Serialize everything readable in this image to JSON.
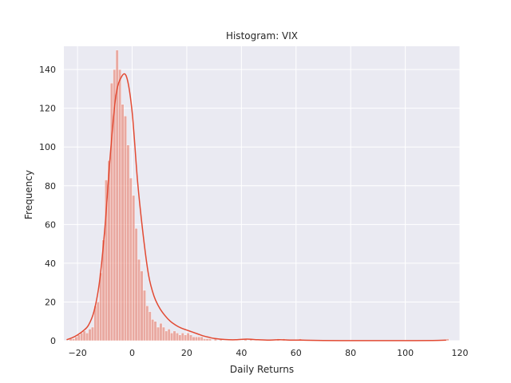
{
  "chart_data": {
    "type": "bar",
    "title": "Histogram: VIX",
    "xlabel": "Daily Returns",
    "ylabel": "Frequency",
    "xlim": [
      -25,
      120
    ],
    "ylim": [
      0,
      152
    ],
    "xticks": [
      -20,
      0,
      20,
      40,
      60,
      80,
      100,
      120
    ],
    "yticks": [
      0,
      20,
      40,
      60,
      80,
      100,
      120,
      140
    ],
    "grid": true,
    "background": "#eaeaf2",
    "bar_color": "#e8735f",
    "kde_color": "#e24a33",
    "bin_width": 1.0,
    "bins": [
      {
        "x": -23,
        "count": 1
      },
      {
        "x": -22,
        "count": 1
      },
      {
        "x": -21,
        "count": 2
      },
      {
        "x": -20,
        "count": 3
      },
      {
        "x": -19,
        "count": 4
      },
      {
        "x": -18,
        "count": 5
      },
      {
        "x": -17,
        "count": 4
      },
      {
        "x": -16,
        "count": 6
      },
      {
        "x": -15,
        "count": 7
      },
      {
        "x": -14,
        "count": 18
      },
      {
        "x": -13,
        "count": 20
      },
      {
        "x": -12,
        "count": 35
      },
      {
        "x": -11,
        "count": 52
      },
      {
        "x": -10,
        "count": 83
      },
      {
        "x": -9,
        "count": 93
      },
      {
        "x": -8,
        "count": 133
      },
      {
        "x": -7,
        "count": 140
      },
      {
        "x": -6,
        "count": 150
      },
      {
        "x": -5,
        "count": 140
      },
      {
        "x": -4,
        "count": 122
      },
      {
        "x": -3,
        "count": 116
      },
      {
        "x": -2,
        "count": 101
      },
      {
        "x": -1,
        "count": 84
      },
      {
        "x": 0,
        "count": 75
      },
      {
        "x": 1,
        "count": 58
      },
      {
        "x": 2,
        "count": 42
      },
      {
        "x": 3,
        "count": 36
      },
      {
        "x": 4,
        "count": 26
      },
      {
        "x": 5,
        "count": 18
      },
      {
        "x": 6,
        "count": 15
      },
      {
        "x": 7,
        "count": 11
      },
      {
        "x": 8,
        "count": 10
      },
      {
        "x": 9,
        "count": 7
      },
      {
        "x": 10,
        "count": 9
      },
      {
        "x": 11,
        "count": 7
      },
      {
        "x": 12,
        "count": 5
      },
      {
        "x": 13,
        "count": 6
      },
      {
        "x": 14,
        "count": 4
      },
      {
        "x": 15,
        "count": 5
      },
      {
        "x": 16,
        "count": 4
      },
      {
        "x": 17,
        "count": 3
      },
      {
        "x": 18,
        "count": 4
      },
      {
        "x": 19,
        "count": 3
      },
      {
        "x": 20,
        "count": 4
      },
      {
        "x": 21,
        "count": 3
      },
      {
        "x": 22,
        "count": 2
      },
      {
        "x": 23,
        "count": 2
      },
      {
        "x": 24,
        "count": 2
      },
      {
        "x": 25,
        "count": 2
      },
      {
        "x": 26,
        "count": 1
      },
      {
        "x": 27,
        "count": 1
      },
      {
        "x": 28,
        "count": 1
      },
      {
        "x": 30,
        "count": 1
      },
      {
        "x": 32,
        "count": 1
      },
      {
        "x": 41,
        "count": 1
      },
      {
        "x": 43,
        "count": 1
      },
      {
        "x": 53,
        "count": 1
      },
      {
        "x": 55,
        "count": 1
      },
      {
        "x": 61,
        "count": 1
      },
      {
        "x": 115,
        "count": 1
      }
    ],
    "kde": [
      {
        "x": -24,
        "y": 0.5
      },
      {
        "x": -22,
        "y": 1.5
      },
      {
        "x": -20,
        "y": 3
      },
      {
        "x": -18,
        "y": 5
      },
      {
        "x": -16,
        "y": 8
      },
      {
        "x": -14,
        "y": 15
      },
      {
        "x": -12,
        "y": 30
      },
      {
        "x": -10,
        "y": 58
      },
      {
        "x": -8,
        "y": 96
      },
      {
        "x": -6,
        "y": 126
      },
      {
        "x": -4,
        "y": 136
      },
      {
        "x": -2,
        "y": 136
      },
      {
        "x": 0,
        "y": 118
      },
      {
        "x": 2,
        "y": 82
      },
      {
        "x": 4,
        "y": 55
      },
      {
        "x": 6,
        "y": 34
      },
      {
        "x": 8,
        "y": 23
      },
      {
        "x": 10,
        "y": 17
      },
      {
        "x": 12,
        "y": 13
      },
      {
        "x": 14,
        "y": 10
      },
      {
        "x": 16,
        "y": 8
      },
      {
        "x": 18,
        "y": 6.5
      },
      {
        "x": 20,
        "y": 5.5
      },
      {
        "x": 22,
        "y": 4.5
      },
      {
        "x": 24,
        "y": 3.5
      },
      {
        "x": 26,
        "y": 2.5
      },
      {
        "x": 28,
        "y": 1.8
      },
      {
        "x": 30,
        "y": 1.2
      },
      {
        "x": 34,
        "y": 0.6
      },
      {
        "x": 38,
        "y": 0.5
      },
      {
        "x": 42,
        "y": 0.8
      },
      {
        "x": 46,
        "y": 0.5
      },
      {
        "x": 50,
        "y": 0.3
      },
      {
        "x": 54,
        "y": 0.5
      },
      {
        "x": 58,
        "y": 0.3
      },
      {
        "x": 62,
        "y": 0.3
      },
      {
        "x": 70,
        "y": 0.1
      },
      {
        "x": 80,
        "y": 0.05
      },
      {
        "x": 90,
        "y": 0.05
      },
      {
        "x": 100,
        "y": 0.05
      },
      {
        "x": 110,
        "y": 0.1
      },
      {
        "x": 115,
        "y": 0.3
      }
    ]
  }
}
